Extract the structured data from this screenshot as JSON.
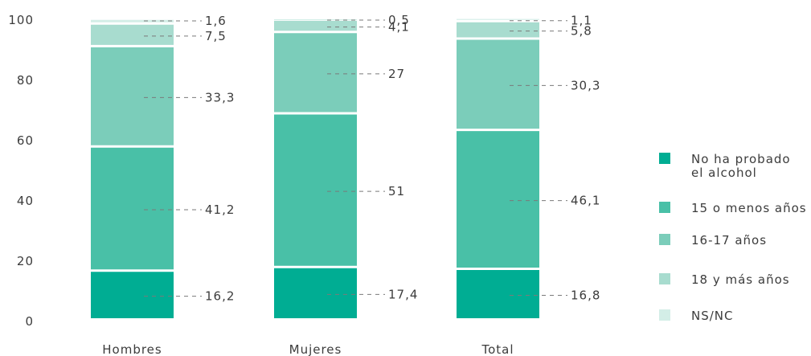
{
  "chart_data": {
    "type": "bar",
    "stacked": true,
    "title": "",
    "xlabel": "",
    "ylabel": "",
    "ylim": [
      0,
      100
    ],
    "yticks": [
      "0",
      "20",
      "40",
      "60",
      "80",
      "100"
    ],
    "grid": false,
    "legend_position": "right",
    "categories": [
      "Hombres",
      "Mujeres",
      "Total"
    ],
    "series": [
      {
        "name": "No ha probado el alcohol",
        "legend_lines": [
          "No ha probado",
          "el alcohol"
        ],
        "color": "#00ad93",
        "values": [
          16.2,
          17.4,
          16.8
        ],
        "labels": [
          "16,2",
          "17,4",
          "16,8"
        ]
      },
      {
        "name": "15 o menos años",
        "legend_lines": [
          "15 o menos años"
        ],
        "color": "#49c0a7",
        "values": [
          41.2,
          51,
          46.1
        ],
        "labels": [
          "41,2",
          "51",
          "46,1"
        ]
      },
      {
        "name": "16-17 años",
        "legend_lines": [
          "16-17 años"
        ],
        "color": "#7bcdba",
        "values": [
          33.3,
          27,
          30.3
        ],
        "labels": [
          "33,3",
          "27",
          "30,3"
        ]
      },
      {
        "name": "18 y más años",
        "legend_lines": [
          "18 y más años"
        ],
        "color": "#a8dccf",
        "values": [
          7.5,
          4.1,
          5.8
        ],
        "labels": [
          "7,5",
          "4,1",
          "5,8"
        ]
      },
      {
        "name": "NS/NC",
        "legend_lines": [
          "NS/NC"
        ],
        "color": "#d3eee7",
        "values": [
          1.6,
          0.5,
          1.1
        ],
        "labels": [
          "1,6",
          "0,5",
          "1,1"
        ]
      }
    ]
  }
}
